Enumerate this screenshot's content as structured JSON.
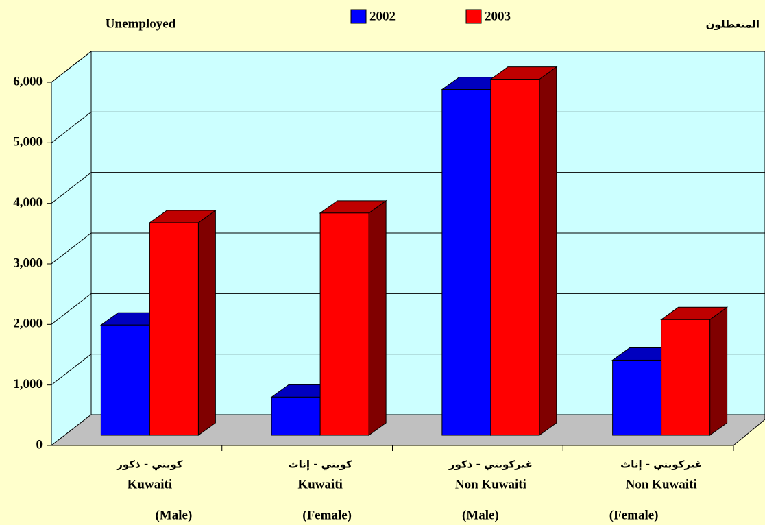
{
  "chart_data": {
    "type": "bar3d",
    "title": "Unemployed",
    "title_ar": "المتعطلون",
    "categories": [
      [
        "كويتي - ذكور",
        "Kuwaiti",
        "(Male)"
      ],
      [
        "كويتي - إناث",
        "Kuwaiti",
        "(Female)"
      ],
      [
        "غيركويتي - ذكور",
        "Non Kuwaiti",
        "(Male)"
      ],
      [
        "غيركويتي - إناث",
        "Non Kuwaiti",
        "(Female)"
      ]
    ],
    "series": [
      {
        "name": "2002",
        "color": "#0000ff",
        "values": [
          1820,
          630,
          5710,
          1240
        ]
      },
      {
        "name": "2003",
        "color": "#ff0000",
        "values": [
          3510,
          3670,
          5880,
          1910
        ]
      }
    ],
    "ylim": [
      0,
      6000
    ],
    "yticks": [
      0,
      {
        "value": 1000,
        "label": "1,000"
      },
      {
        "value": 2000,
        "label": "2,000"
      },
      {
        "value": 3000,
        "label": "3,000"
      },
      {
        "value": 4000,
        "label": "4,000"
      },
      {
        "value": 5000,
        "label": "5,000"
      },
      {
        "value": 6000,
        "label": "6,000"
      }
    ],
    "grid": true,
    "legend": "top"
  }
}
